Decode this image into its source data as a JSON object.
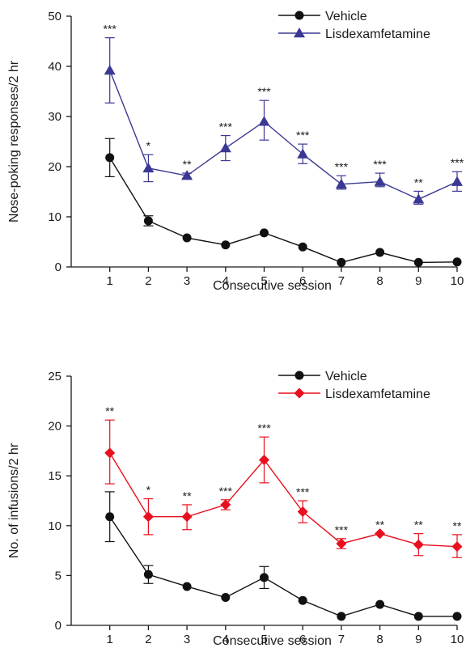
{
  "chart_data": [
    {
      "type": "line",
      "xlabel": "Consecutive session",
      "ylabel": "Nose-poking responses/2 hr",
      "ylim": [
        0,
        50
      ],
      "yticks": [
        0,
        10,
        20,
        30,
        40,
        50
      ],
      "x": [
        1,
        2,
        3,
        4,
        5,
        6,
        7,
        8,
        9,
        10
      ],
      "xlim": [
        0,
        10
      ],
      "legend": "top-right",
      "grid": false,
      "series": [
        {
          "name": "Vehicle",
          "marker": "circle",
          "color": "#111111",
          "values": [
            21.8,
            9.2,
            5.8,
            4.4,
            6.8,
            4.0,
            0.9,
            2.9,
            0.9,
            1.0
          ],
          "err_up": [
            3.8,
            1.0,
            0,
            0,
            0,
            0,
            0,
            0,
            0,
            0
          ],
          "err_down": [
            3.8,
            1.0,
            0,
            0,
            0,
            0,
            0,
            0,
            0,
            0
          ]
        },
        {
          "name": "Lisdexamfetamine",
          "marker": "triangle",
          "color": "#3b3894",
          "values": [
            39.2,
            19.7,
            18.2,
            23.7,
            29.0,
            22.5,
            16.5,
            17.0,
            13.5,
            17.0
          ],
          "err_up": [
            6.5,
            2.7,
            0.5,
            2.5,
            4.2,
            2.0,
            1.7,
            1.7,
            1.6,
            2.0
          ],
          "err_down": [
            6.5,
            2.7,
            0.5,
            2.5,
            3.7,
            1.9,
            1.0,
            1.0,
            1.0,
            1.9
          ],
          "significance": [
            "***",
            "*",
            "**",
            "***",
            "***",
            "***",
            "***",
            "***",
            "**",
            "***"
          ]
        }
      ]
    },
    {
      "type": "line",
      "xlabel": "Consecutive session",
      "ylabel": "No. of infusions/2 hr",
      "ylim": [
        0,
        25
      ],
      "yticks": [
        0,
        5,
        10,
        15,
        20,
        25
      ],
      "x": [
        1,
        2,
        3,
        4,
        5,
        6,
        7,
        8,
        9,
        10
      ],
      "xlim": [
        0,
        10
      ],
      "legend": "top-right",
      "grid": false,
      "series": [
        {
          "name": "Vehicle",
          "marker": "circle",
          "color": "#111111",
          "values": [
            10.9,
            5.1,
            3.9,
            2.8,
            4.8,
            2.5,
            0.9,
            2.1,
            0.9,
            0.9
          ],
          "err_up": [
            2.5,
            0.9,
            0,
            0,
            1.1,
            0,
            0,
            0,
            0,
            0
          ],
          "err_down": [
            2.5,
            0.9,
            0,
            0,
            1.1,
            0,
            0,
            0,
            0,
            0
          ]
        },
        {
          "name": "Lisdexamfetamine",
          "marker": "diamond",
          "color": "#e8101e",
          "values": [
            17.3,
            10.9,
            10.9,
            12.1,
            16.6,
            11.4,
            8.2,
            9.2,
            8.1,
            7.9
          ],
          "err_up": [
            3.3,
            1.8,
            1.2,
            0.5,
            2.3,
            1.1,
            0.5,
            0,
            1.1,
            1.2
          ],
          "err_down": [
            3.1,
            1.8,
            1.3,
            0.5,
            2.3,
            1.1,
            0.5,
            0,
            1.1,
            1.1
          ],
          "significance": [
            "**",
            "*",
            "**",
            "***",
            "***",
            "***",
            "***",
            "**",
            "**",
            "**"
          ]
        }
      ]
    }
  ]
}
